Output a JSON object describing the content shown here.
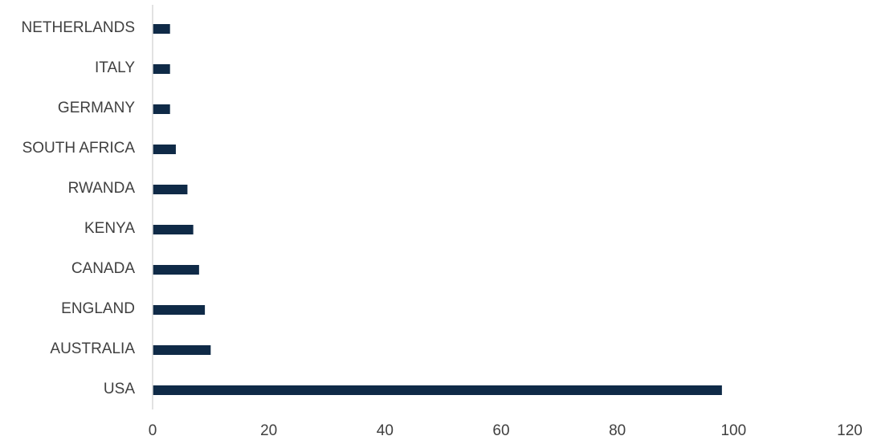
{
  "chart_data": {
    "type": "bar",
    "orientation": "horizontal",
    "categories": [
      "USA",
      "AUSTRALIA",
      "ENGLAND",
      "CANADA",
      "KENYA",
      "RWANDA",
      "SOUTH AFRICA",
      "GERMANY",
      "ITALY",
      "NETHERLANDS"
    ],
    "values": [
      98,
      10,
      9,
      8,
      7,
      6,
      4,
      3,
      3,
      3
    ],
    "title": "",
    "xlabel": "",
    "ylabel": "",
    "xlim": [
      0,
      120
    ],
    "xticks": [
      0,
      20,
      40,
      60,
      80,
      100,
      120
    ],
    "grid": false,
    "legend": "none",
    "bar_color": "#0f2a47",
    "axis_color": "#d9d9d9"
  }
}
